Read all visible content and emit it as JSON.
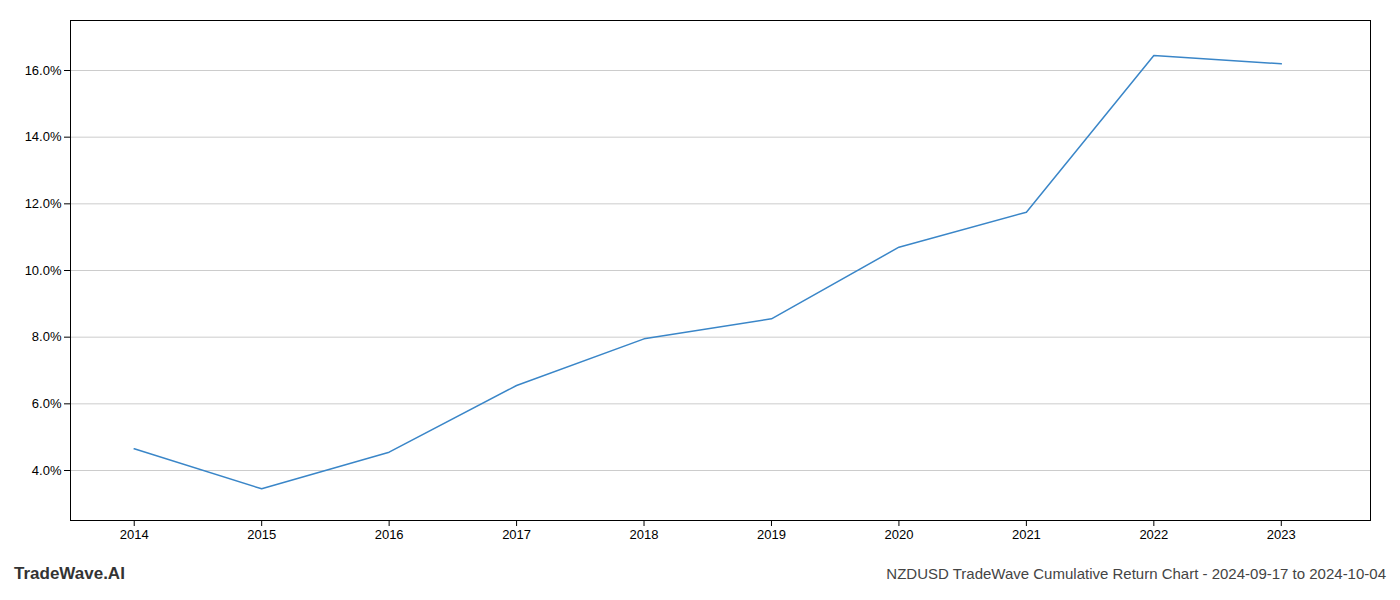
{
  "chart_data": {
    "type": "line",
    "title": "NZDUSD TradeWave Cumulative Return Chart - 2024-09-17 to 2024-10-04",
    "annotations": [
      "TradeWave.AI"
    ],
    "x": [
      2014,
      2015,
      2016,
      2017,
      2018,
      2019,
      2020,
      2021,
      2022,
      2023
    ],
    "values": [
      4.65,
      3.45,
      4.55,
      6.55,
      7.95,
      8.55,
      10.7,
      11.75,
      16.45,
      16.2
    ],
    "color": "#3a86c8",
    "xlim": [
      2013.5,
      2023.7
    ],
    "xticks": [
      2014,
      2015,
      2016,
      2017,
      2018,
      2019,
      2020,
      2021,
      2022,
      2023
    ],
    "ylim": [
      2.5,
      17.5
    ],
    "yticks": [
      {
        "value": 4.0,
        "label": "4.0%"
      },
      {
        "value": 6.0,
        "label": "6.0%"
      },
      {
        "value": 8.0,
        "label": "8.0%"
      },
      {
        "value": 10.0,
        "label": "10.0%"
      },
      {
        "value": 12.0,
        "label": "12.0%"
      },
      {
        "value": 14.0,
        "label": "14.0%"
      },
      {
        "value": 16.0,
        "label": "16.0%"
      }
    ],
    "grid": "y"
  }
}
